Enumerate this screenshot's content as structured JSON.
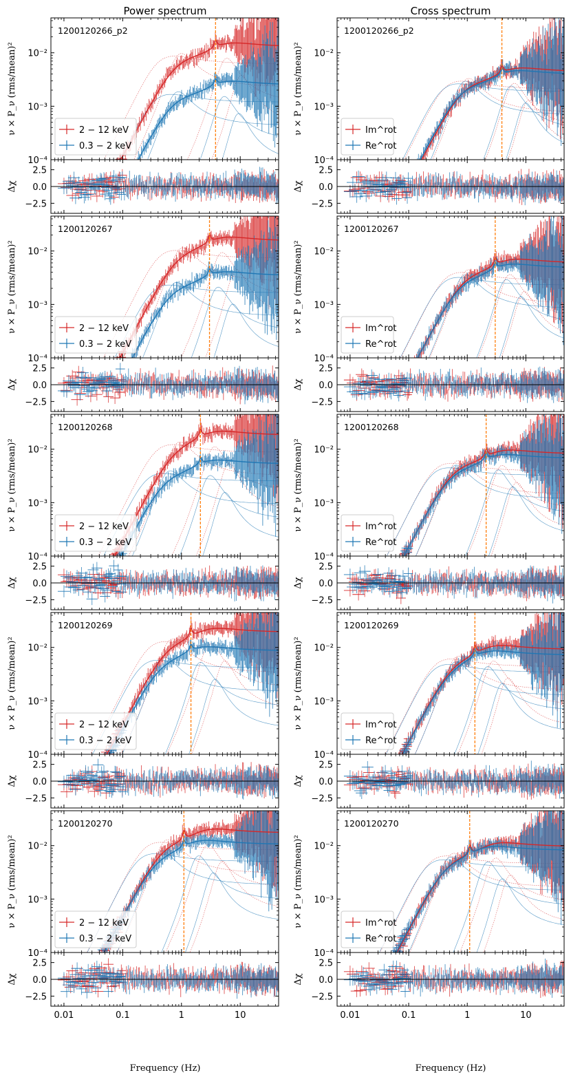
{
  "figure": {
    "column_titles": [
      "Power spectrum",
      "Cross spectrum"
    ],
    "x_label": "Frequency (Hz)",
    "main_ylabel": "ν × P_ν (rms/mean)²",
    "resid_ylabel": "Δχ"
  },
  "chart_data": {
    "type": "line",
    "x_scale": "log",
    "xlim": [
      0.006,
      45
    ],
    "x_ticks": [
      0.01,
      0.1,
      1,
      10
    ],
    "x_tick_labels": [
      "0.01",
      "0.1",
      "1",
      "10"
    ],
    "main_ylim": [
      0.0001,
      0.045
    ],
    "main_y_ticks": [
      0.0001,
      0.001,
      0.01
    ],
    "main_y_tick_labels": [
      "10⁻⁴",
      "10⁻³",
      "10⁻²"
    ],
    "resid_ylim": [
      -4,
      4
    ],
    "resid_y_ticks": [
      2.5,
      0.0,
      -2.5
    ],
    "resid_y_tick_labels": [
      "2.5",
      "0.0",
      "−2.5"
    ],
    "colors": {
      "red": "#d62728",
      "blue": "#1f77b4",
      "qpo_line": "#ff7f0e"
    },
    "power_legend": [
      "2 − 12 keV",
      "0.3 − 2 keV"
    ],
    "cross_legend": [
      "Im^rot",
      "Re^rot"
    ],
    "observations": [
      {
        "id": "1200120266_p2",
        "power": {
          "qpo": 3.8,
          "red": {
            "amp": 0.0135,
            "f1": 0.85,
            "f2": 4.2
          },
          "blue": {
            "amp": 0.0026,
            "f1": 0.75,
            "f2": 3.8
          }
        },
        "cross": {
          "qpo": 3.9,
          "red": {
            "amp": 0.0046,
            "f1": 0.9,
            "f2": 4.5
          },
          "blue": {
            "amp": 0.0041,
            "f1": 0.8,
            "f2": 4.0
          }
        }
      },
      {
        "id": "1200120267",
        "power": {
          "qpo": 3.0,
          "red": {
            "amp": 0.016,
            "f1": 0.9,
            "f2": 3.5
          },
          "blue": {
            "amp": 0.0036,
            "f1": 0.7,
            "f2": 3.0
          }
        },
        "cross": {
          "qpo": 3.0,
          "red": {
            "amp": 0.0062,
            "f1": 0.9,
            "f2": 3.8
          },
          "blue": {
            "amp": 0.005,
            "f1": 0.8,
            "f2": 3.3
          }
        }
      },
      {
        "id": "1200120268",
        "power": {
          "qpo": 2.1,
          "red": {
            "amp": 0.019,
            "f1": 0.8,
            "f2": 2.6
          },
          "blue": {
            "amp": 0.0055,
            "f1": 0.55,
            "f2": 2.2
          }
        },
        "cross": {
          "qpo": 2.1,
          "red": {
            "amp": 0.0085,
            "f1": 0.6,
            "f2": 2.8
          },
          "blue": {
            "amp": 0.007,
            "f1": 0.55,
            "f2": 2.4
          }
        }
      },
      {
        "id": "1200120269",
        "power": {
          "qpo": 1.45,
          "red": {
            "amp": 0.02,
            "f1": 0.6,
            "f2": 2.2
          },
          "blue": {
            "amp": 0.009,
            "f1": 0.45,
            "f2": 1.5
          }
        },
        "cross": {
          "qpo": 1.35,
          "red": {
            "amp": 0.0095,
            "f1": 0.6,
            "f2": 2.0
          },
          "blue": {
            "amp": 0.0075,
            "f1": 0.55,
            "f2": 1.6
          }
        }
      },
      {
        "id": "1200120270",
        "power": {
          "qpo": 1.1,
          "red": {
            "amp": 0.018,
            "f1": 0.5,
            "f2": 2.0
          },
          "blue": {
            "amp": 0.011,
            "f1": 0.4,
            "f2": 1.4
          }
        },
        "cross": {
          "qpo": 1.1,
          "red": {
            "amp": 0.01,
            "f1": 0.5,
            "f2": 2.2
          },
          "blue": {
            "amp": 0.0085,
            "f1": 0.45,
            "f2": 1.6
          }
        }
      }
    ]
  }
}
